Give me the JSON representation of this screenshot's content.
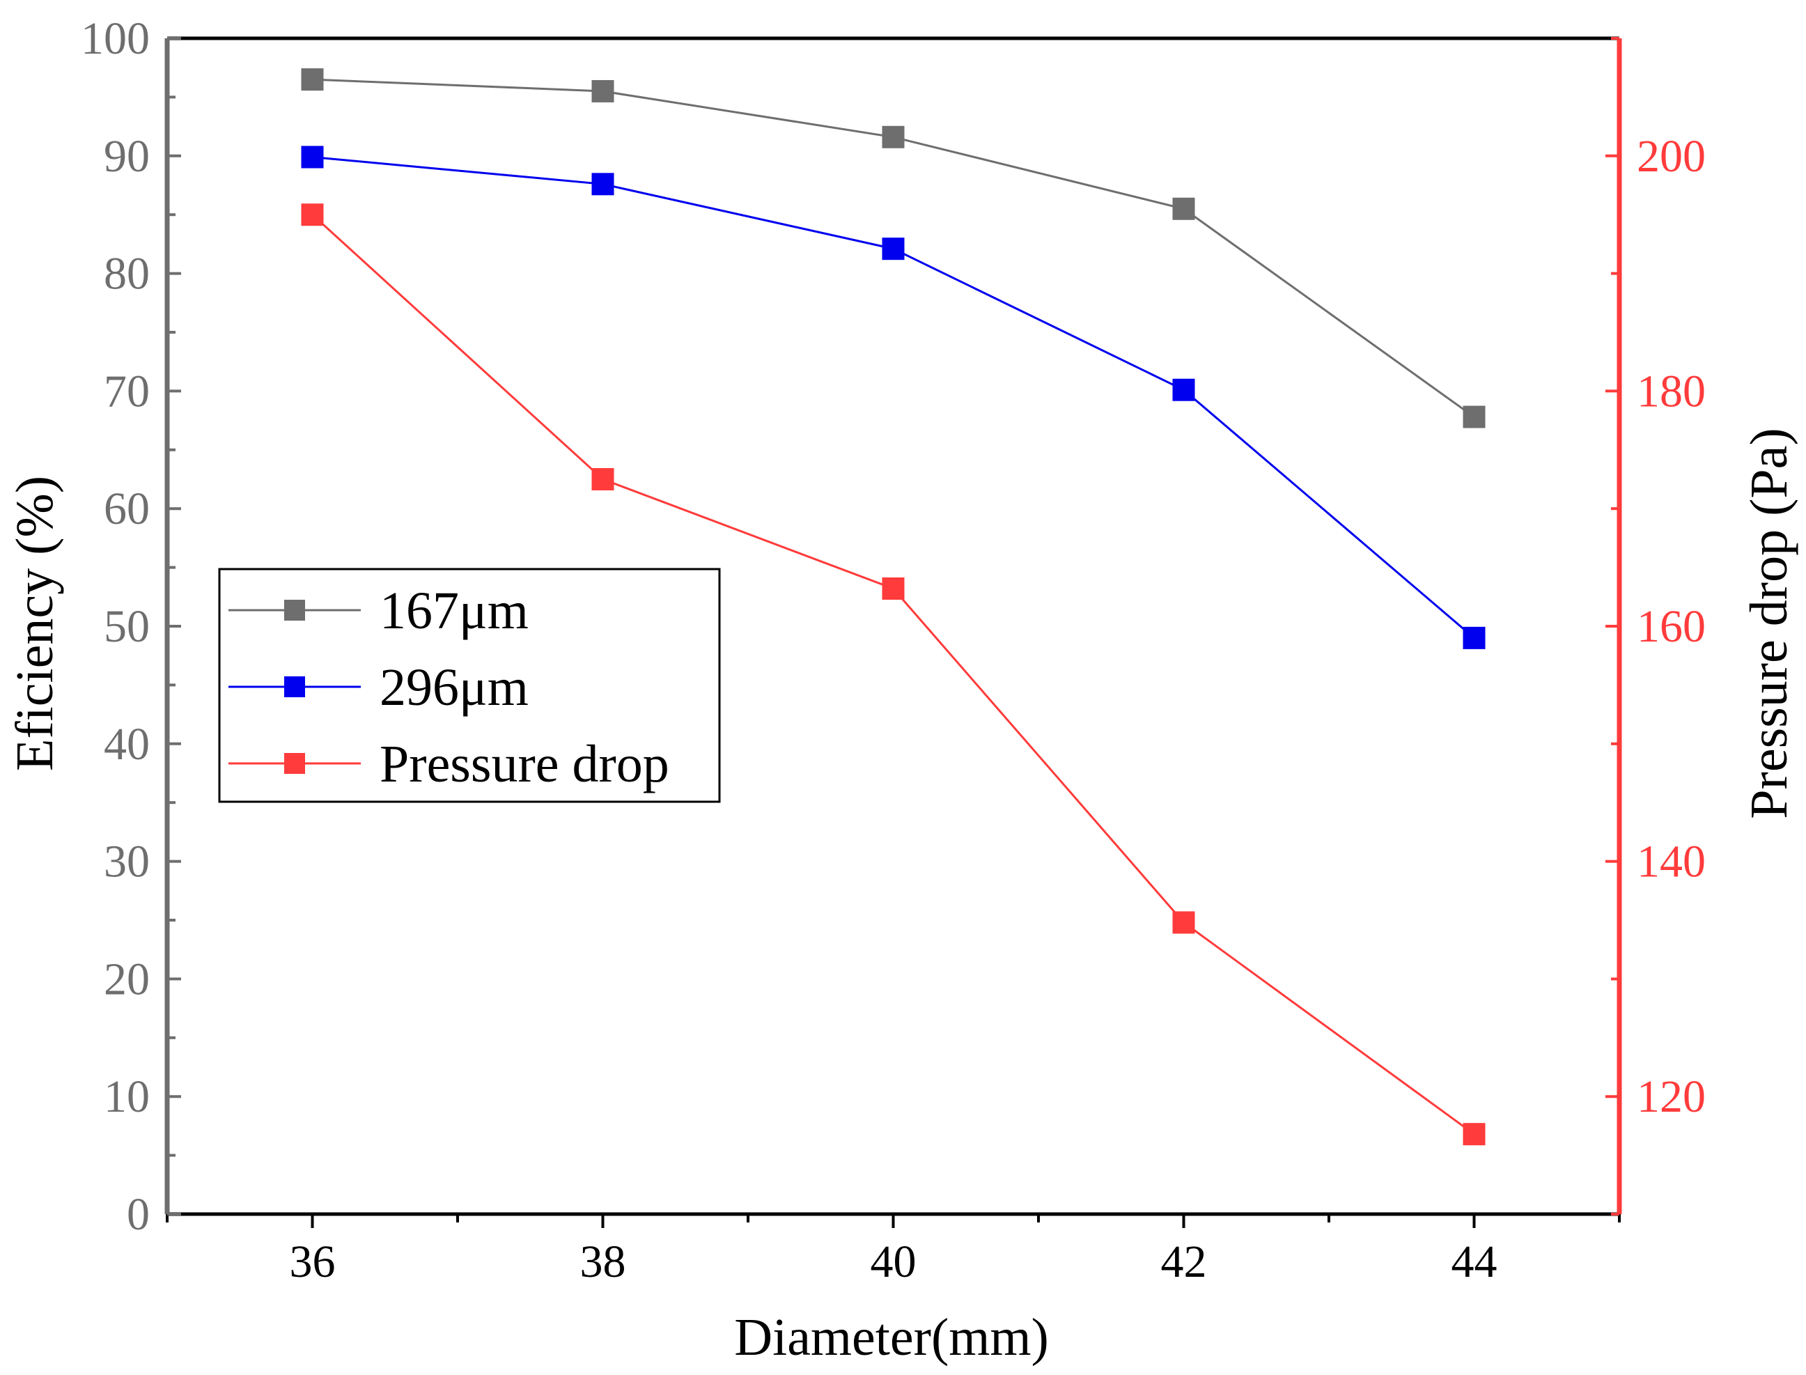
{
  "chart_data": {
    "type": "line",
    "xlabel": "Diameter(mm)",
    "ylabel_left": "Eficiency (%)",
    "ylabel_right": "Pressure drop (Pa)",
    "xlim": [
      35,
      45
    ],
    "ylim_left": [
      0,
      100
    ],
    "ylim_right": [
      110,
      210
    ],
    "x_ticks": [
      "36",
      "38",
      "40",
      "42",
      "44"
    ],
    "y_left_ticks": [
      "0",
      "10",
      "20",
      "30",
      "40",
      "50",
      "60",
      "70",
      "80",
      "90",
      "100"
    ],
    "y_right_ticks": [
      "120",
      "140",
      "160",
      "180",
      "200"
    ],
    "x": [
      36,
      38,
      40,
      42,
      44
    ],
    "series": [
      {
        "name": "167μm",
        "axis": "left",
        "color": "#6e6e6e",
        "values": [
          96.5,
          95.5,
          91.6,
          85.5,
          67.8
        ]
      },
      {
        "name": "296μm",
        "axis": "left",
        "color": "#0000ee",
        "values": [
          89.9,
          87.6,
          82.1,
          70.1,
          49.0
        ]
      },
      {
        "name": "Pressure drop",
        "axis": "right",
        "color": "#ff3b3b",
        "values": [
          195.0,
          172.5,
          163.2,
          134.8,
          116.8
        ]
      }
    ],
    "legend_position": "middle-left",
    "grid": false,
    "left_axis_color": "#6e6e6e",
    "right_axis_color": "#ff3b3b"
  }
}
